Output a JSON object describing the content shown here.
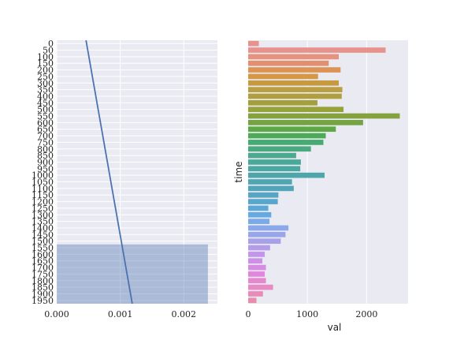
{
  "chart_data": [
    {
      "type": "line",
      "orientation": "horizontal",
      "x": [
        0.00047,
        0.00118
      ],
      "y": [
        0,
        1950
      ],
      "xlim": [
        0.0,
        0.00253
      ],
      "ylim": [
        0,
        1950
      ],
      "xticks": [
        "0.000",
        "0.001",
        "0.002"
      ],
      "xtick_values": [
        0.0,
        0.001,
        0.002
      ],
      "yticks": [
        "0",
        "50",
        "100",
        "150",
        "200",
        "250",
        "300",
        "350",
        "400",
        "450",
        "500",
        "550",
        "600",
        "650",
        "700",
        "750",
        "800",
        "850",
        "900",
        "950",
        "1000",
        "1050",
        "1100",
        "1150",
        "1200",
        "1250",
        "1300",
        "1350",
        "1400",
        "1450",
        "1500",
        "1550",
        "1600",
        "1650",
        "1700",
        "1750",
        "1800",
        "1850",
        "1900",
        "1950"
      ],
      "shaded_region": {
        "x": [
          0.0,
          0.00238
        ],
        "y": [
          1550,
          1950
        ]
      },
      "xlabel": "",
      "ylabel": "",
      "grid": true,
      "line_color": "#4c72b0",
      "shade_color": "#4c72b0"
    },
    {
      "type": "bar",
      "orientation": "horizontal",
      "categories": [
        "0",
        "50",
        "100",
        "150",
        "200",
        "250",
        "300",
        "350",
        "400",
        "450",
        "500",
        "550",
        "600",
        "650",
        "700",
        "750",
        "800",
        "850",
        "900",
        "950",
        "1000",
        "1050",
        "1100",
        "1150",
        "1200",
        "1250",
        "1300",
        "1350",
        "1400",
        "1450",
        "1500",
        "1550",
        "1600",
        "1650",
        "1700",
        "1750",
        "1800",
        "1850",
        "1900",
        "1950"
      ],
      "values": [
        180,
        2320,
        1530,
        1360,
        1560,
        1180,
        1530,
        1590,
        1580,
        1170,
        1610,
        2560,
        1940,
        1480,
        1310,
        1270,
        1060,
        810,
        890,
        880,
        1290,
        740,
        770,
        510,
        500,
        340,
        390,
        360,
        680,
        630,
        550,
        370,
        280,
        240,
        300,
        280,
        300,
        420,
        250,
        140
      ],
      "xlim": [
        0,
        2700
      ],
      "xticks": [
        "0",
        "1000",
        "2000"
      ],
      "xtick_values": [
        0,
        1000,
        2000
      ],
      "xlabel": "val",
      "ylabel": "time",
      "grid": true,
      "colors": [
        "#e8928d",
        "#e8928d",
        "#e6937e",
        "#e38f6f",
        "#dc9353",
        "#d59847",
        "#c89a40",
        "#bb9e41",
        "#b09f3e",
        "#a49f3b",
        "#98a23b",
        "#84a33e",
        "#73a441",
        "#5fa846",
        "#4daa57",
        "#46ab70",
        "#49aa80",
        "#4aa98e",
        "#4aa898",
        "#4ba7a2",
        "#4ea6aa",
        "#4fa6b3",
        "#51a5bb",
        "#55a5c3",
        "#57a6cd",
        "#5ba7d9",
        "#65a9e2",
        "#7aaae8",
        "#8ba8ea",
        "#99a5ea",
        "#a7a1ea",
        "#b49ceb",
        "#c196eb",
        "#cd90e8",
        "#d88be3",
        "#e087db",
        "#e688cf",
        "#e88ac4",
        "#e98bb8",
        "#e98cab"
      ]
    }
  ]
}
